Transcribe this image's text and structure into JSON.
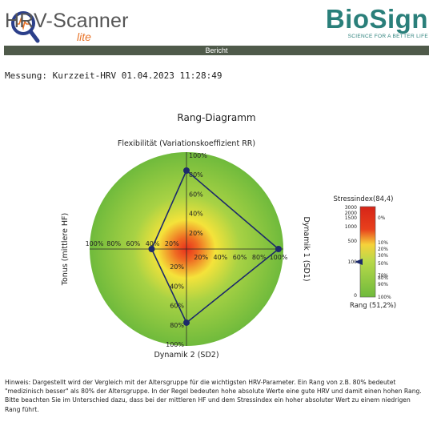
{
  "header": {
    "app_name": "HRV-Scanner",
    "app_edition": "lite",
    "brand_name": "BioSign",
    "brand_tagline": "SCIENCE FOR A BETTER LIFE",
    "report_label": "Bericht"
  },
  "measurement_label": "Messung: Kurzzeit-HRV 01.04.2023 11:28:49",
  "chart_title": "Rang-Diagramm",
  "chart_data": [
    {
      "type": "radar",
      "axes": [
        {
          "key": "top",
          "label": "Flexibilität (Variationskoeffizient RR)",
          "rank": 81
        },
        {
          "key": "right",
          "label": "Dynamik 1 (SD1)",
          "rank": 95
        },
        {
          "key": "bottom",
          "label": "Dynamik 2 (SD2)",
          "rank": 76
        },
        {
          "key": "left",
          "label": "Tonus (mittlere HF)",
          "rank": 36
        }
      ],
      "range": [
        0,
        100
      ],
      "ticks": [
        "20%",
        "40%",
        "60%",
        "80%",
        "100%"
      ],
      "colors": {
        "center": "#e8301c",
        "mid": "#f5e33a",
        "outer": "#6fba3c",
        "line": "#1d2a6b"
      }
    },
    {
      "type": "gauge",
      "label": "Stressindex",
      "value_label": "(84,4)",
      "value": 84.4,
      "left_ticks": [
        "3000",
        "2000",
        "1500",
        "1000",
        "500",
        "100",
        "0"
      ],
      "right_ticks": [
        "0%",
        "10%",
        "20%",
        "30%",
        "50%",
        "70%",
        "80%",
        "90%",
        "100%"
      ],
      "rank_label": "Rang",
      "rank_value_label": "(51,2%)",
      "rank": 51.2
    }
  ],
  "note": "Hinweis: Dargestellt wird der Vergleich mit der Altersgruppe für die wichtigsten HRV-Parameter. Ein Rang von z.B. 80% bedeutet \"medizinisch besser\" als 80% der Altersgruppe. In der Regel bedeuten hohe absolute Werte eine gute HRV und damit einen hohen Rang. Bitte beachten Sie im Unterschied dazu, dass bei der mittleren HF und dem Stressindex ein hoher absoluter Wert zu einem niedrigen Rang führt."
}
